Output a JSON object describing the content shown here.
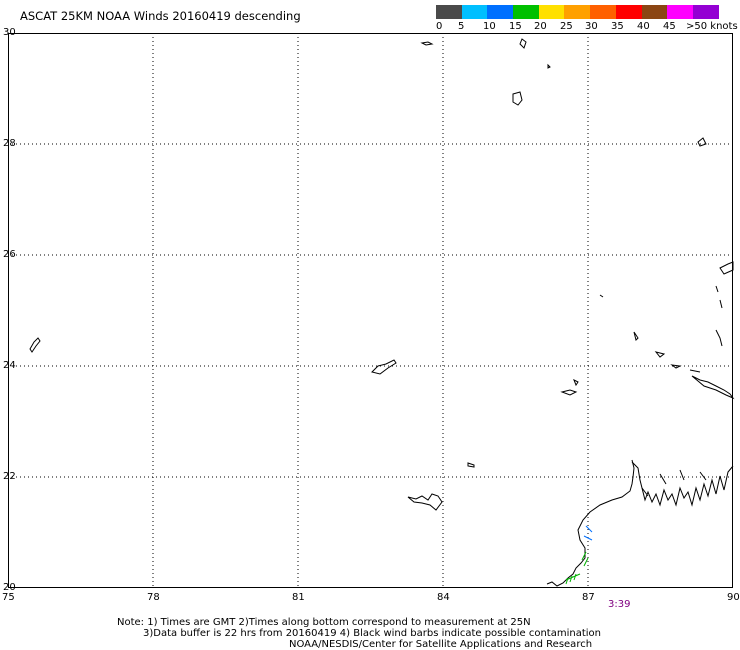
{
  "title": "ASCAT 25KM NOAA Winds 20160419 descending",
  "legend": {
    "colors": [
      "#4a4a4a",
      "#00bfff",
      "#0070ff",
      "#00c000",
      "#ffe000",
      "#ffa000",
      "#ff6000",
      "#ff0000",
      "#8b4513",
      "#ff00ff",
      "#9400d3",
      "#3a006b"
    ],
    "labels": [
      "0",
      "5",
      "10",
      "15",
      "20",
      "25",
      "30",
      "35",
      "40",
      "45",
      ">50 knots"
    ]
  },
  "axes": {
    "x_ticks": [
      "75",
      "78",
      "81",
      "84",
      "87",
      "90"
    ],
    "y_ticks": [
      "30",
      "28",
      "26",
      "24",
      "22",
      "20"
    ]
  },
  "time_label": "3:39",
  "notes": {
    "line1": "Note: 1) Times are GMT 2)Times along bottom correspond to measurement at 25N",
    "line2": "3)Data buffer is 22 hrs from 20160419 4) Black wind barbs indicate possible contamination",
    "line3": "NOAA/NESDIS/Center for Satellite Applications and Research"
  },
  "colors": {
    "time_label": "#800080",
    "barb_green": "#00b000",
    "barb_blue": "#0070ff"
  }
}
